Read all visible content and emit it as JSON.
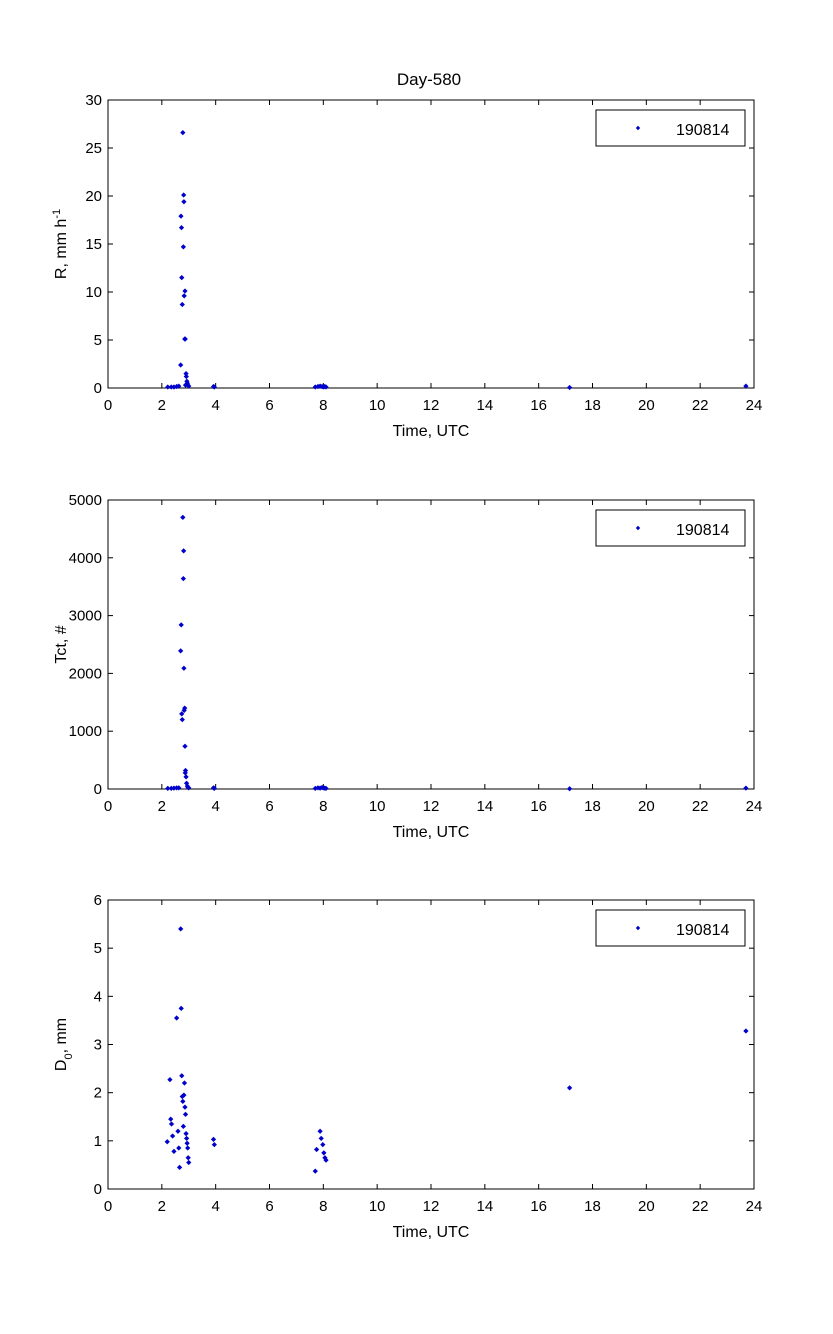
{
  "figure_title": "Day-580",
  "chart_data": [
    {
      "type": "scatter",
      "title": "Day-580",
      "xlabel": "Time, UTC",
      "ylabel": {
        "base": "R, mm h",
        "sup": "-1"
      },
      "xlim": [
        0,
        24
      ],
      "ylim": [
        0,
        30
      ],
      "xticks": [
        0,
        2,
        4,
        6,
        8,
        10,
        12,
        14,
        16,
        18,
        20,
        22,
        24
      ],
      "yticks": [
        0,
        5,
        10,
        15,
        20,
        25,
        30
      ],
      "legend": {
        "position": "top-right",
        "entries": [
          "190814"
        ]
      },
      "series": [
        {
          "name": "190814",
          "color": "#0000cc",
          "x": [
            2.22,
            2.35,
            2.45,
            2.55,
            2.63,
            2.7,
            2.71,
            2.73,
            2.74,
            2.76,
            2.78,
            2.8,
            2.81,
            2.82,
            2.83,
            2.85,
            2.86,
            2.87,
            2.88,
            2.9,
            2.91,
            2.93,
            2.95,
            2.97,
            3.0,
            3.92,
            3.95,
            7.7,
            7.8,
            7.88,
            7.95,
            8.0,
            8.05,
            8.1,
            17.15,
            23.7
          ],
          "y": [
            0.1,
            0.1,
            0.1,
            0.15,
            0.2,
            2.4,
            17.9,
            16.7,
            11.5,
            8.7,
            26.6,
            14.7,
            20.1,
            19.4,
            9.6,
            5.1,
            10.1,
            5.1,
            0.3,
            1.5,
            1.2,
            0.7,
            0.5,
            0.3,
            0.2,
            0.15,
            0.1,
            0.1,
            0.15,
            0.2,
            0.15,
            0.1,
            0.15,
            0.1,
            0.05,
            0.2
          ]
        }
      ]
    },
    {
      "type": "scatter",
      "xlabel": "Time, UTC",
      "ylabel": "Tct, #",
      "xlim": [
        0,
        24
      ],
      "ylim": [
        0,
        5000
      ],
      "xticks": [
        0,
        2,
        4,
        6,
        8,
        10,
        12,
        14,
        16,
        18,
        20,
        22,
        24
      ],
      "yticks": [
        0,
        1000,
        2000,
        3000,
        4000,
        5000
      ],
      "legend": {
        "position": "top-right",
        "entries": [
          "190814"
        ]
      },
      "series": [
        {
          "name": "190814",
          "color": "#0000cc",
          "x": [
            2.22,
            2.35,
            2.45,
            2.55,
            2.63,
            2.7,
            2.72,
            2.74,
            2.76,
            2.78,
            2.8,
            2.81,
            2.82,
            2.83,
            2.85,
            2.86,
            2.87,
            2.88,
            2.9,
            2.92,
            2.95,
            2.97,
            3.0,
            3.92,
            3.95,
            7.7,
            7.8,
            7.88,
            7.95,
            8.0,
            8.05,
            8.1,
            17.15,
            23.7
          ],
          "y": [
            10,
            10,
            15,
            20,
            20,
            2390,
            2840,
            1300,
            1200,
            4700,
            3640,
            4120,
            2090,
            1360,
            1400,
            740,
            280,
            320,
            210,
            100,
            50,
            30,
            20,
            20,
            10,
            10,
            20,
            15,
            25,
            20,
            15,
            10,
            5,
            15
          ]
        }
      ]
    },
    {
      "type": "scatter",
      "xlabel": "Time, UTC",
      "ylabel": {
        "base": "D",
        "sub": "0",
        "rest": ", mm"
      },
      "xlim": [
        0,
        24
      ],
      "ylim": [
        0,
        6
      ],
      "xticks": [
        0,
        2,
        4,
        6,
        8,
        10,
        12,
        14,
        16,
        18,
        20,
        22,
        24
      ],
      "yticks": [
        0,
        1,
        2,
        3,
        4,
        5,
        6
      ],
      "legend": {
        "position": "top-right",
        "entries": [
          "190814"
        ]
      },
      "series": [
        {
          "name": "190814",
          "color": "#0000cc",
          "x": [
            2.2,
            2.3,
            2.33,
            2.36,
            2.4,
            2.45,
            2.55,
            2.6,
            2.63,
            2.66,
            2.7,
            2.72,
            2.74,
            2.76,
            2.78,
            2.8,
            2.82,
            2.84,
            2.86,
            2.88,
            2.9,
            2.92,
            2.94,
            2.96,
            2.98,
            3.0,
            3.92,
            3.95,
            7.7,
            7.75,
            7.88,
            7.92,
            7.98,
            8.02,
            8.06,
            8.1,
            17.15,
            23.7
          ],
          "y": [
            0.98,
            2.27,
            1.45,
            1.35,
            1.1,
            0.78,
            3.55,
            1.2,
            0.85,
            0.45,
            5.4,
            3.75,
            2.35,
            1.92,
            1.82,
            1.3,
            1.95,
            2.2,
            1.7,
            1.55,
            1.15,
            1.05,
            0.95,
            0.85,
            0.65,
            0.55,
            1.03,
            0.92,
            0.37,
            0.82,
            1.2,
            1.05,
            0.92,
            0.75,
            0.65,
            0.6,
            2.1,
            3.28
          ]
        }
      ]
    }
  ]
}
